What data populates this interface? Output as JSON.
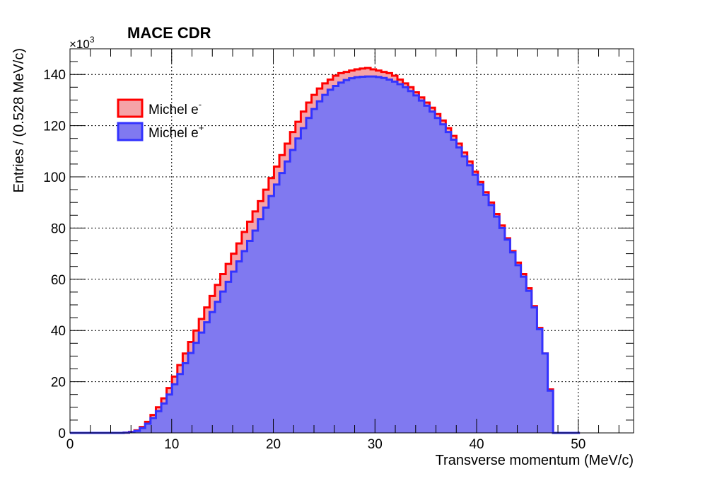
{
  "chart_data": {
    "type": "area",
    "title": "MACE CDR",
    "xlabel": "Transverse momentum (MeV/c)",
    "ylabel": "Entries / (0.528 MeV/c)",
    "y_multiplier": "×10",
    "y_multiplier_exp": "3",
    "xlim": [
      0,
      55.44
    ],
    "ylim": [
      0,
      150
    ],
    "bin_width": 0.528,
    "grid": true,
    "x_ticks": [
      "0",
      "10",
      "20",
      "30",
      "40",
      "50"
    ],
    "y_ticks": [
      "0",
      "20",
      "40",
      "60",
      "80",
      "100",
      "120",
      "140"
    ],
    "legend_position": "top-left",
    "series": [
      {
        "name": "Michel e",
        "sup": "-",
        "line_color": "#ff0000",
        "fill_color": "#f5a3a8",
        "values": [
          0,
          0,
          0,
          0,
          0,
          0,
          0,
          0,
          0,
          0,
          0.1,
          0.4,
          1.0,
          2.3,
          4.3,
          7.0,
          10.0,
          13.5,
          17.5,
          22.0,
          26.5,
          31.0,
          35.5,
          40.0,
          44.5,
          49.0,
          53.5,
          57.8,
          62.0,
          66.0,
          70.0,
          74.0,
          78.5,
          82.5,
          86.5,
          90.5,
          95.0,
          99.5,
          104.0,
          108.5,
          113.0,
          117.5,
          121.5,
          125.5,
          129.0,
          132.0,
          134.5,
          136.5,
          138.0,
          139.5,
          140.5,
          141.0,
          141.5,
          142.0,
          142.3,
          142.5,
          142.0,
          141.5,
          141.0,
          140.5,
          139.5,
          138.0,
          136.5,
          135.0,
          133.0,
          131.0,
          129.0,
          127.0,
          124.5,
          122.0,
          119.0,
          116.0,
          113.0,
          109.5,
          106.0,
          102.0,
          98.0,
          94.0,
          90.0,
          85.5,
          81.0,
          76.0,
          71.0,
          66.5,
          62.0,
          56.5,
          49.5,
          41.0,
          31.0,
          17.0,
          0,
          0,
          0,
          0,
          0
        ]
      },
      {
        "name": "Michel e",
        "sup": "+",
        "line_color": "#3333ff",
        "fill_color": "#8079f0",
        "values": [
          0,
          0,
          0,
          0,
          0,
          0,
          0,
          0,
          0,
          0,
          0.1,
          0.3,
          0.8,
          1.9,
          3.6,
          5.8,
          8.5,
          11.5,
          15.0,
          19.0,
          23.0,
          27.2,
          31.2,
          35.2,
          39.2,
          43.2,
          47.2,
          51.2,
          55.2,
          59.0,
          63.0,
          67.0,
          71.0,
          75.0,
          79.0,
          83.5,
          88.0,
          92.5,
          97.0,
          101.5,
          106.0,
          110.5,
          115.0,
          119.0,
          123.0,
          126.5,
          129.5,
          132.0,
          134.0,
          135.5,
          136.8,
          137.8,
          138.5,
          138.9,
          139.1,
          139.2,
          139.2,
          139.0,
          138.6,
          138.0,
          137.2,
          136.2,
          135.0,
          133.5,
          131.8,
          129.8,
          127.8,
          125.5,
          123.0,
          120.5,
          117.5,
          114.5,
          111.5,
          108.0,
          104.5,
          100.8,
          97.0,
          93.0,
          89.0,
          84.5,
          80.0,
          75.5,
          70.5,
          65.5,
          61.0,
          55.5,
          49.0,
          40.5,
          31.0,
          16.5,
          0,
          0,
          0,
          0,
          0
        ]
      }
    ]
  }
}
